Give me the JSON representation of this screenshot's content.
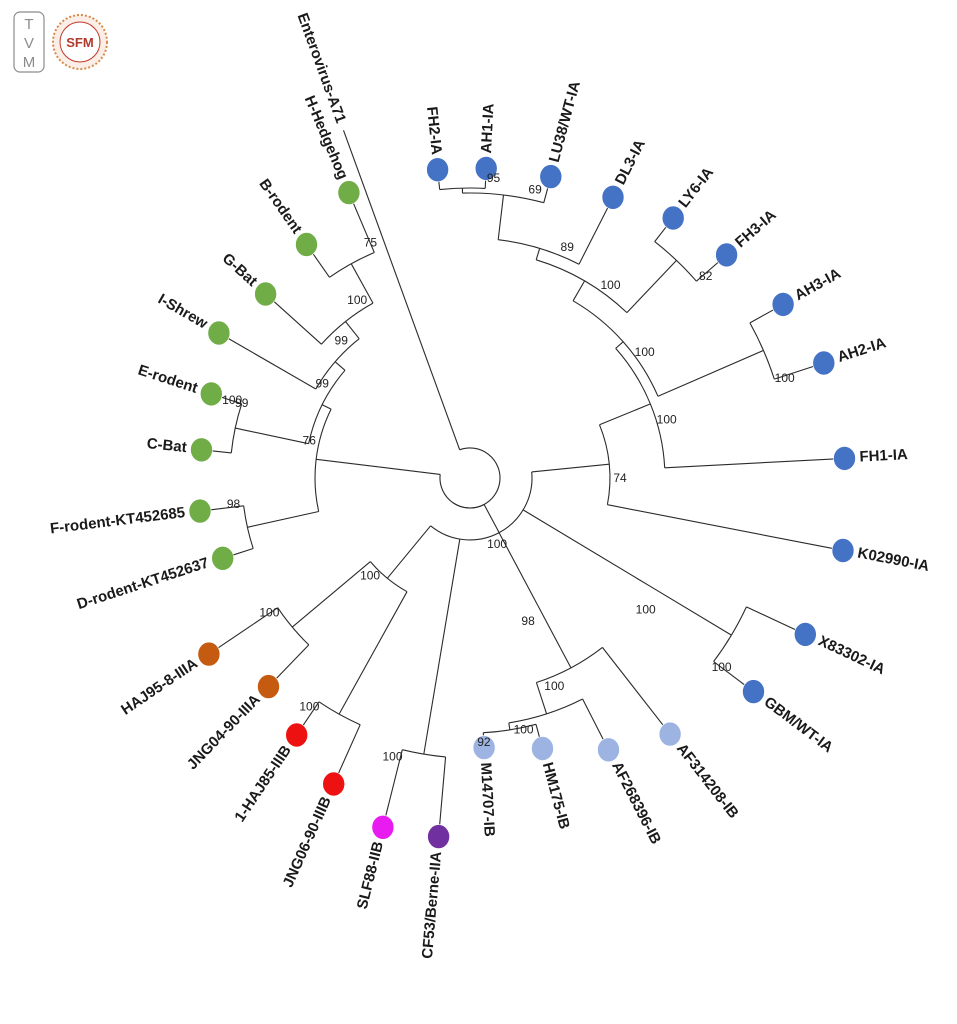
{
  "logos": {
    "left_letters": [
      "T",
      "V",
      "M"
    ],
    "right_text": "SFM"
  },
  "tree": {
    "root_leaf": {
      "name": "Enterovirus-A71",
      "color": null
    },
    "leaves": [
      {
        "name": "FH2-IA",
        "color": "#4472c4"
      },
      {
        "name": "AH1-IA",
        "color": "#4472c4"
      },
      {
        "name": "LU38/WT-IA",
        "color": "#4472c4"
      },
      {
        "name": "DL3-IA",
        "color": "#4472c4"
      },
      {
        "name": "LY6-IA",
        "color": "#4472c4"
      },
      {
        "name": "FH3-IA",
        "color": "#4472c4"
      },
      {
        "name": "AH3-IA",
        "color": "#4472c4"
      },
      {
        "name": "AH2-IA",
        "color": "#4472c4"
      },
      {
        "name": "FH1-IA",
        "color": "#4472c4"
      },
      {
        "name": "K02990-IA",
        "color": "#4472c4"
      },
      {
        "name": "X83302-IA",
        "color": "#4472c4"
      },
      {
        "name": "GBM/WT-IA",
        "color": "#4472c4"
      },
      {
        "name": "AF314208-IB",
        "color": "#9db3e2"
      },
      {
        "name": "AF268396-IB",
        "color": "#9db3e2"
      },
      {
        "name": "HM175-IB",
        "color": "#9db3e2"
      },
      {
        "name": "M14707-IB",
        "color": "#9db3e2"
      },
      {
        "name": "CF53/Berne-IIA",
        "color": "#7030a0"
      },
      {
        "name": "SLF88-IIB",
        "color": "#e81cf0"
      },
      {
        "name": "JNG06-90-IIIB",
        "color": "#ee1111"
      },
      {
        "name": "1-HAJ85-IIIB",
        "color": "#ee1111"
      },
      {
        "name": "JNG04-90-IIIA",
        "color": "#c55a11"
      },
      {
        "name": "HAJ95-8-IIIA",
        "color": "#c55a11"
      },
      {
        "name": "D-rodent-KT452637",
        "color": "#70ad47"
      },
      {
        "name": "F-rodent-KT452685",
        "color": "#70ad47"
      },
      {
        "name": "C-Bat",
        "color": "#70ad47"
      },
      {
        "name": "E-rodent",
        "color": "#70ad47"
      },
      {
        "name": "I-Shrew",
        "color": "#70ad47"
      },
      {
        "name": "G-Bat",
        "color": "#70ad47"
      },
      {
        "name": "B-rodent",
        "color": "#70ad47"
      },
      {
        "name": "H-Hedgehog",
        "color": "#70ad47"
      }
    ],
    "bootstrap": {
      "fh2_ah1": "95",
      "lu38": "69",
      "dl3": "89",
      "ly6_fh3": "82",
      "ly6_group": "100",
      "ah3_ah2": "100",
      "ah_group": "100",
      "fh1": "100",
      "k02990": "74",
      "x_gbm": "100",
      "x_gbm_group": "100",
      "ia_all": "100",
      "hm_m": "92",
      "af268": "100",
      "af314": "100",
      "hav": "98",
      "hav_ii": "100",
      "iii_all": "100",
      "iiia": "100",
      "iiib": "100",
      "d_f": "98",
      "h_b": "75",
      "g_bat": "100",
      "i_shrew": "99",
      "e_c": "100",
      "e_c_group": "99",
      "rodent_all": "76"
    }
  }
}
